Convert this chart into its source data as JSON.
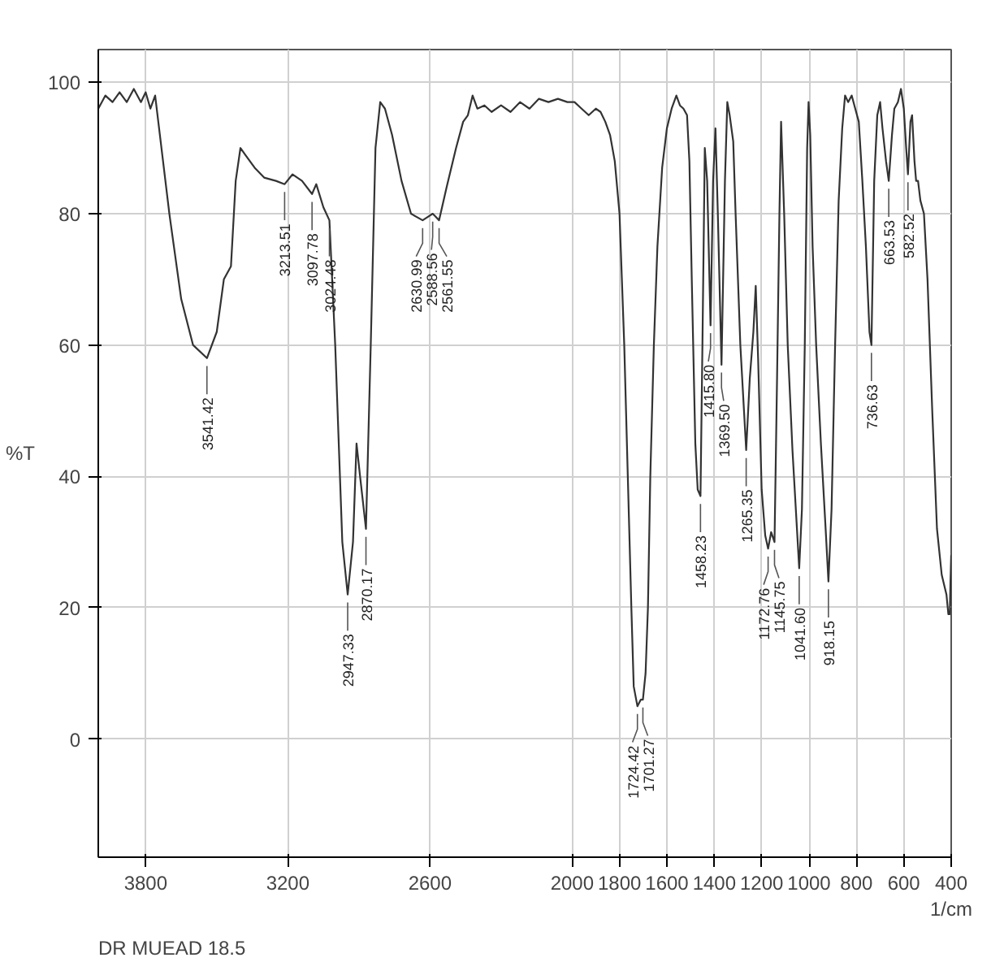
{
  "chart_data": {
    "type": "line",
    "xlabel": "1/cm",
    "ylabel": "%T",
    "color": "#333333",
    "grid": true,
    "xlim": [
      4000,
      400
    ],
    "ylim": [
      -18,
      105
    ],
    "xticks": [
      3800,
      3200,
      2600,
      2000,
      1800,
      1600,
      1400,
      1200,
      1000,
      800,
      600,
      400
    ],
    "yticks": [
      0,
      20,
      40,
      60,
      80,
      100
    ],
    "x": [
      4000,
      3970,
      3940,
      3910,
      3880,
      3850,
      3820,
      3800,
      3780,
      3760,
      3740,
      3700,
      3650,
      3600,
      3541.42,
      3500,
      3470,
      3440,
      3420,
      3400,
      3380,
      3340,
      3300,
      3250,
      3213.51,
      3180,
      3140,
      3097.78,
      3080,
      3050,
      3024.48,
      3000,
      2970,
      2947.33,
      2925,
      2910,
      2895,
      2870.17,
      2850,
      2830,
      2810,
      2790,
      2760,
      2720,
      2680,
      2630.99,
      2610,
      2588.56,
      2575,
      2561.55,
      2530,
      2490,
      2460,
      2440,
      2420,
      2400,
      2370,
      2340,
      2300,
      2260,
      2220,
      2180,
      2140,
      2100,
      2060,
      2020,
      1990,
      1960,
      1930,
      1900,
      1880,
      1860,
      1840,
      1820,
      1800,
      1780,
      1765,
      1750,
      1740,
      1724.42,
      1710,
      1701.27,
      1690,
      1680,
      1670,
      1655,
      1640,
      1620,
      1600,
      1580,
      1560,
      1545,
      1530,
      1515,
      1505,
      1495,
      1480,
      1470,
      1458.23,
      1450,
      1440,
      1430,
      1415.8,
      1405,
      1395,
      1385,
      1369.5,
      1355,
      1345,
      1335,
      1320,
      1310,
      1290,
      1265.35,
      1250,
      1235,
      1225,
      1215,
      1200,
      1185,
      1172.76,
      1160,
      1145.75,
      1135,
      1125,
      1118,
      1105,
      1090,
      1070,
      1041.6,
      1030,
      1018,
      1008,
      1002,
      995,
      985,
      970,
      950,
      930,
      918.15,
      905,
      890,
      875,
      860,
      848,
      835,
      820,
      805,
      790,
      775,
      760,
      745,
      736.63,
      725,
      712,
      700,
      690,
      675,
      663.53,
      650,
      640,
      625,
      612,
      600,
      590,
      582.52,
      572,
      565,
      555,
      548,
      540,
      530,
      515,
      500,
      480,
      460,
      440,
      420,
      412,
      406,
      403,
      400
    ],
    "values": [
      96,
      98,
      97,
      98.5,
      97,
      99,
      97,
      98.5,
      96,
      98,
      92,
      80,
      67,
      60,
      58,
      62,
      70,
      72,
      85,
      90,
      89,
      87,
      85.5,
      85,
      84.5,
      86,
      85,
      83,
      84.5,
      81,
      79,
      60,
      30,
      22,
      30,
      45,
      40,
      32,
      60,
      90,
      97,
      96,
      92,
      85,
      80,
      79,
      79.5,
      80,
      79.5,
      79,
      84,
      90,
      94,
      95,
      98,
      96,
      96.5,
      95.5,
      96.5,
      95.5,
      97,
      96,
      97.5,
      97,
      97.5,
      97,
      97,
      96,
      95,
      96,
      95.5,
      94,
      92,
      88,
      80,
      60,
      40,
      20,
      8,
      5,
      6,
      6,
      10,
      20,
      40,
      60,
      75,
      87,
      93,
      96,
      98,
      96.5,
      96,
      95,
      88,
      70,
      45,
      38,
      37,
      60,
      90,
      85,
      63,
      85,
      93,
      80,
      57,
      85,
      97,
      95,
      91,
      80,
      60,
      44,
      55,
      62,
      69,
      58,
      38,
      31,
      29,
      31.5,
      30,
      55,
      80,
      94,
      80,
      60,
      44,
      26,
      35,
      60,
      90,
      97,
      92,
      75,
      60,
      45,
      32,
      24,
      35,
      60,
      82,
      93,
      98,
      97,
      98,
      96,
      94,
      85,
      75,
      62,
      60,
      85,
      95,
      97,
      93,
      88,
      85,
      92,
      96,
      97,
      99,
      96,
      90,
      86,
      94,
      95,
      88,
      85,
      85,
      82,
      80,
      70,
      50,
      32,
      25,
      22,
      19,
      19,
      24,
      28
    ],
    "annotations": [
      "DR MUEAD 18.5",
      {
        "text": "3541.42",
        "x": 3541.42,
        "y": 58
      },
      {
        "text": "3213.51",
        "x": 3213.51,
        "y": 84.5
      },
      {
        "text": "3097.78",
        "x": 3097.78,
        "y": 83
      },
      {
        "text": "3024.48",
        "x": 3024.48,
        "y": 79
      },
      {
        "text": "2947.33",
        "x": 2947.33,
        "y": 22
      },
      {
        "text": "2870.17",
        "x": 2870.17,
        "y": 32
      },
      {
        "text": "2630.99",
        "x": 2630.99,
        "y": 79
      },
      {
        "text": "2588.56",
        "x": 2588.56,
        "y": 80
      },
      {
        "text": "2561.55",
        "x": 2561.55,
        "y": 79
      },
      {
        "text": "1724.42",
        "x": 1724.42,
        "y": 5
      },
      {
        "text": "1701.27",
        "x": 1701.27,
        "y": 6
      },
      {
        "text": "1458.23",
        "x": 1458.23,
        "y": 37
      },
      {
        "text": "1415.80",
        "x": 1415.8,
        "y": 63
      },
      {
        "text": "1369.50",
        "x": 1369.5,
        "y": 57
      },
      {
        "text": "1265.35",
        "x": 1265.35,
        "y": 44
      },
      {
        "text": "1172.76",
        "x": 1172.76,
        "y": 29
      },
      {
        "text": "1145.75",
        "x": 1145.75,
        "y": 30
      },
      {
        "text": "1041.60",
        "x": 1041.6,
        "y": 26
      },
      {
        "text": "918.15",
        "x": 918.15,
        "y": 24
      },
      {
        "text": "736.63",
        "x": 736.63,
        "y": 60
      },
      {
        "text": "663.53",
        "x": 663.53,
        "y": 85
      },
      {
        "text": "582.52",
        "x": 582.52,
        "y": 86
      }
    ]
  }
}
